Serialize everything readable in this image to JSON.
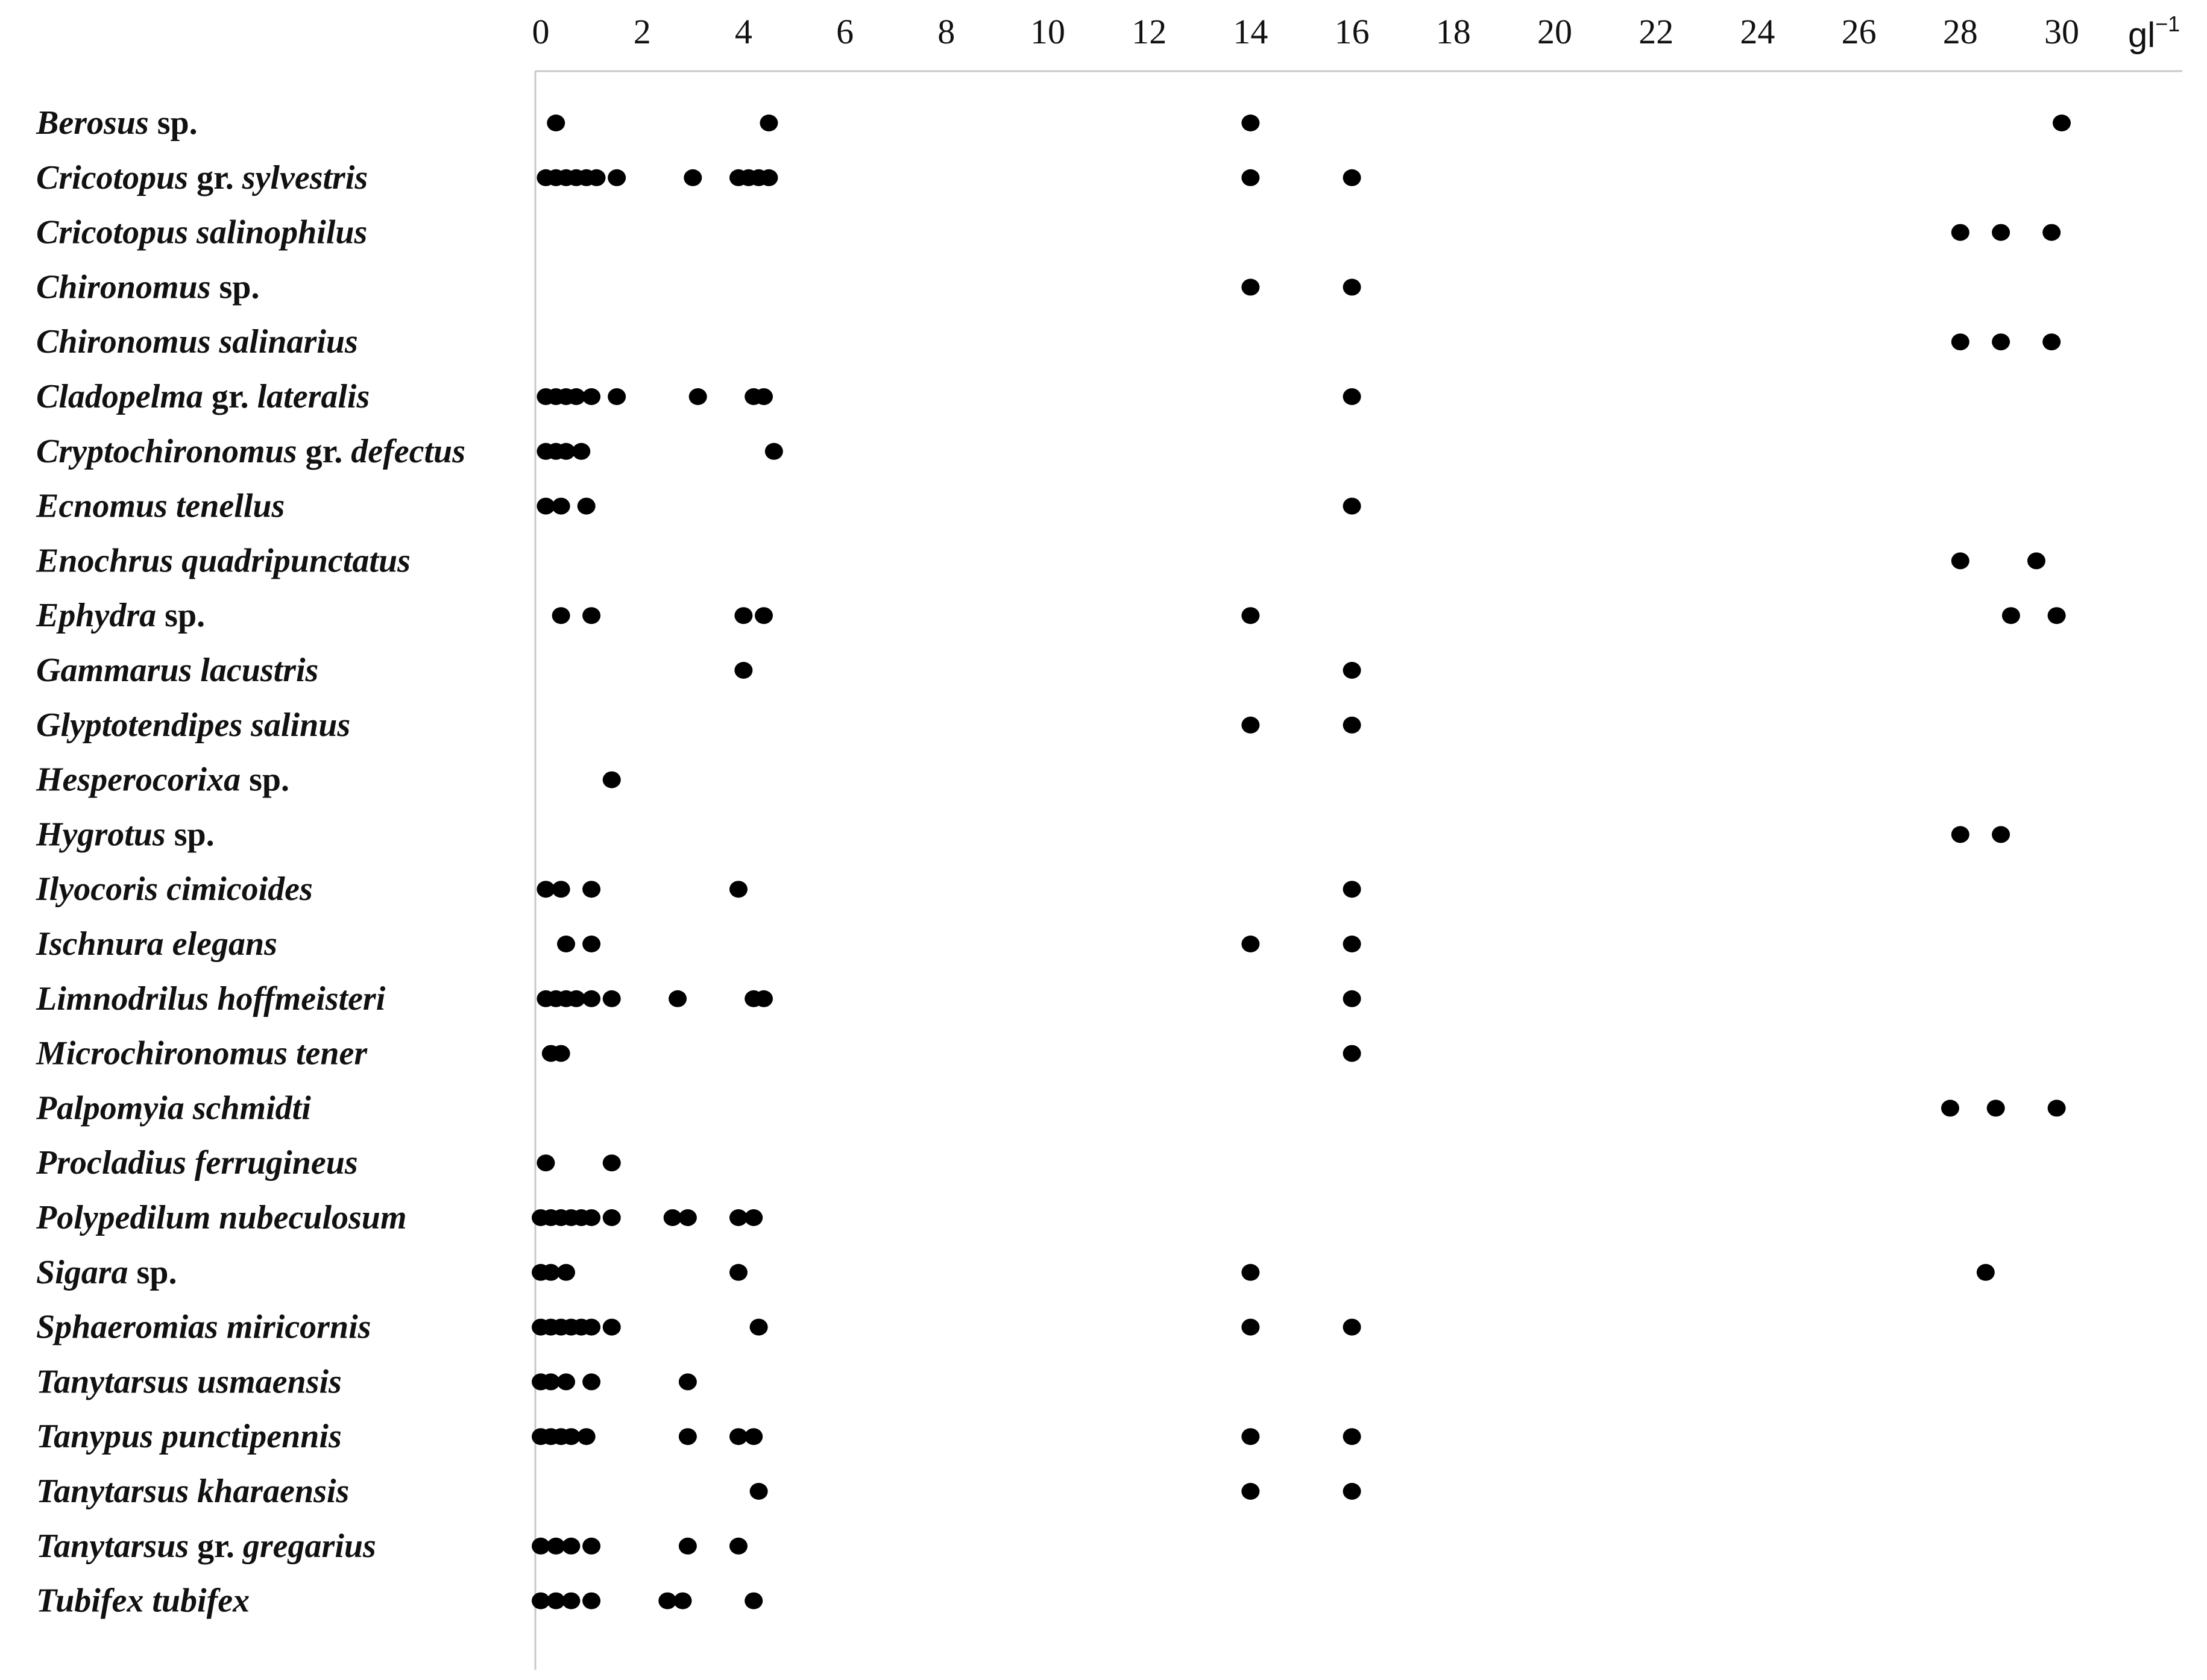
{
  "chart_data": {
    "type": "scatter",
    "title": "",
    "xlabel": "",
    "ylabel": "",
    "x_unit": "gl",
    "x_unit_exponent": "−1",
    "xlim": [
      0,
      30
    ],
    "x_ticks": [
      "0",
      "2",
      "4",
      "6",
      "8",
      "10",
      "12",
      "14",
      "16",
      "18",
      "20",
      "22",
      "24",
      "26",
      "28",
      "30"
    ],
    "grid": false,
    "legend": "none",
    "marker_color": "#000000",
    "species": [
      {
        "name": "Berosus",
        "suffix": " sp.",
        "x": [
          0.3,
          4.5,
          14,
          30
        ]
      },
      {
        "name": "Cricotopus",
        "suffix": " gr. ",
        "name2": "sylvestris",
        "x": [
          0.1,
          0.3,
          0.5,
          0.7,
          0.9,
          1.1,
          1.5,
          3.0,
          3.9,
          4.1,
          4.3,
          4.5,
          14,
          16
        ]
      },
      {
        "name": "Cricotopus salinophilus",
        "suffix": "",
        "x": [
          28,
          28.8,
          29.8
        ]
      },
      {
        "name": "Chironomus",
        "suffix": " sp.",
        "x": [
          14,
          16
        ]
      },
      {
        "name": "Chironomus salinarius",
        "suffix": "",
        "x": [
          28,
          28.8,
          29.8
        ]
      },
      {
        "name": "Cladopelma",
        "suffix": " gr. ",
        "name2": "lateralis",
        "x": [
          0.1,
          0.3,
          0.5,
          0.7,
          1.0,
          1.5,
          3.1,
          4.2,
          4.4,
          16
        ]
      },
      {
        "name": "Cryptochironomus",
        "suffix": " gr. ",
        "name2": "defectus",
        "x": [
          0.1,
          0.3,
          0.5,
          0.8,
          4.6
        ]
      },
      {
        "name": "Ecnomus tenellus",
        "suffix": "",
        "x": [
          0.1,
          0.4,
          0.9,
          16
        ]
      },
      {
        "name": "Enochrus quadripunctatus",
        "suffix": "",
        "x": [
          28,
          29.5
        ]
      },
      {
        "name": "Ephydra",
        "suffix": " sp.",
        "x": [
          0.4,
          1.0,
          4.0,
          4.4,
          14,
          29,
          29.9
        ]
      },
      {
        "name": "Gammarus lacustris",
        "suffix": "",
        "x": [
          4.0,
          16
        ]
      },
      {
        "name": "Glyptotendipes salinus",
        "suffix": "",
        "x": [
          14,
          16
        ]
      },
      {
        "name": "Hesperocorixa",
        "suffix": " sp.",
        "x": [
          1.4
        ]
      },
      {
        "name": "Hygrotus",
        "suffix": " sp.",
        "x": [
          28,
          28.8
        ]
      },
      {
        "name": "Ilyocoris cimicoides",
        "suffix": "",
        "x": [
          0.1,
          0.4,
          1.0,
          3.9,
          16
        ]
      },
      {
        "name": "Ischnura elegans",
        "suffix": "",
        "x": [
          0.5,
          1.0,
          14,
          16
        ]
      },
      {
        "name": "Limnodrilus hoffmeisteri",
        "suffix": "",
        "x": [
          0.1,
          0.3,
          0.5,
          0.7,
          1.0,
          1.4,
          2.7,
          4.2,
          4.4,
          16
        ]
      },
      {
        "name": "Microchironomus tener",
        "suffix": "",
        "x": [
          0.2,
          0.4,
          16
        ]
      },
      {
        "name": "Palpomyia schmidti",
        "suffix": "",
        "x": [
          27.8,
          28.7,
          29.9
        ]
      },
      {
        "name": "Procladius ferrugineus",
        "suffix": "",
        "x": [
          0.1,
          1.4
        ]
      },
      {
        "name": "Polypedilum nubeculosum",
        "suffix": "",
        "x": [
          0.0,
          0.2,
          0.4,
          0.6,
          0.8,
          1.0,
          1.4,
          2.6,
          2.9,
          3.9,
          4.2
        ]
      },
      {
        "name": "Sigara",
        "suffix": " sp.",
        "x": [
          0.0,
          0.2,
          0.5,
          3.9,
          14,
          28.5
        ]
      },
      {
        "name": "Sphaeromias miricornis",
        "suffix": "",
        "x": [
          0.0,
          0.2,
          0.4,
          0.6,
          0.8,
          1.0,
          1.4,
          4.3,
          14,
          16
        ]
      },
      {
        "name": "Tanytarsus usmaensis",
        "suffix": "",
        "x": [
          0.0,
          0.2,
          0.5,
          1.0,
          2.9
        ]
      },
      {
        "name": "Tanypus punctipennis",
        "suffix": "",
        "x": [
          0.0,
          0.2,
          0.4,
          0.6,
          0.9,
          2.9,
          3.9,
          4.2,
          14,
          16
        ]
      },
      {
        "name": "Tanytarsus kharaensis",
        "suffix": "",
        "x": [
          4.3,
          14,
          16
        ]
      },
      {
        "name": "Tanytarsus",
        "suffix": " gr. ",
        "name2": "gregarius",
        "x": [
          0.0,
          0.3,
          0.6,
          1.0,
          2.9,
          3.9
        ]
      },
      {
        "name": "Tubifex tubifex",
        "suffix": "",
        "x": [
          0.0,
          0.3,
          0.6,
          1.0,
          2.5,
          2.8,
          4.2
        ]
      }
    ]
  }
}
